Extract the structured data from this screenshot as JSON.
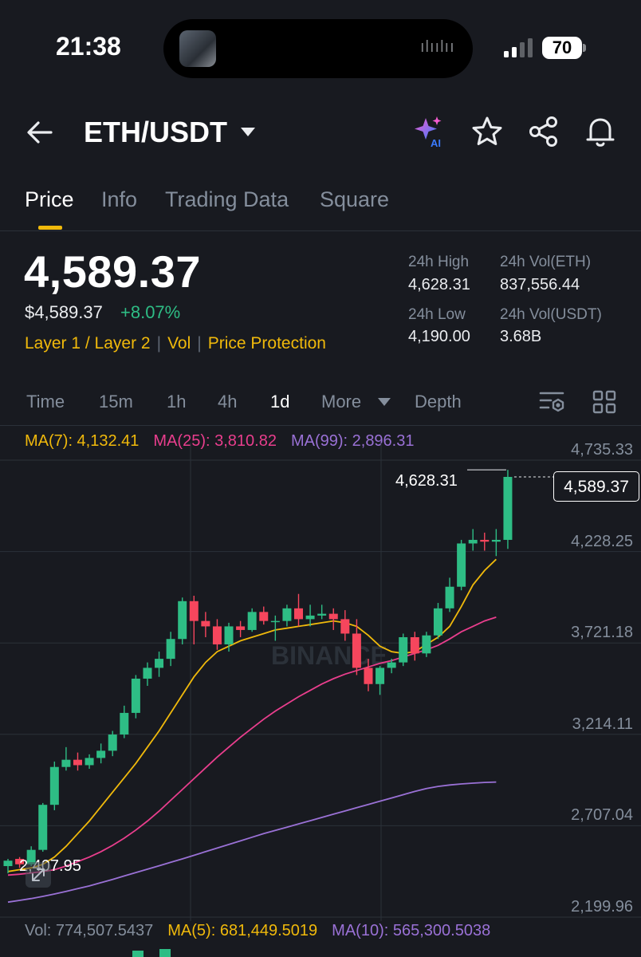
{
  "status_bar": {
    "time": "21:38",
    "battery": "70"
  },
  "header": {
    "pair": "ETH/USDT",
    "ai_badge": "AI"
  },
  "tabs": [
    {
      "label": "Price"
    },
    {
      "label": "Info"
    },
    {
      "label": "Trading Data"
    },
    {
      "label": "Square"
    }
  ],
  "ticker": {
    "last_price": "4,589.37",
    "usd_price": "$4,589.37",
    "change_pct": "+8.07%",
    "tags": [
      "Layer 1 / Layer 2",
      "Vol",
      "Price Protection"
    ],
    "high_label": "24h High",
    "high": "4,628.31",
    "vol_eth_label": "24h Vol(ETH)",
    "vol_eth": "837,556.44",
    "low_label": "24h Low",
    "low": "4,190.00",
    "vol_usdt_label": "24h Vol(USDT)",
    "vol_usdt": "3.68B"
  },
  "intervals": [
    {
      "label": "Time"
    },
    {
      "label": "15m"
    },
    {
      "label": "1h"
    },
    {
      "label": "4h"
    },
    {
      "label": "1d",
      "active": true
    },
    {
      "label": "More"
    },
    {
      "label": "Depth"
    }
  ],
  "ma": {
    "ma7": "MA(7): 4,132.41",
    "ma25": "MA(25): 3,810.82",
    "ma99": "MA(99): 2,896.31"
  },
  "chart_data": {
    "type": "candlestick",
    "y_axis_ticks": [
      "4,735.33",
      "4,228.25",
      "3,721.18",
      "3,214.11",
      "2,707.04",
      "2,199.96"
    ],
    "y_axis_values": [
      4735.33,
      4228.25,
      3721.18,
      3214.11,
      2707.04,
      2199.96
    ],
    "current_price": "4,589.37",
    "high_marker": "4,628.31",
    "low_marker": "2,407.95",
    "watermark": "BINANCE",
    "candles": [
      {
        "o": 2430,
        "h": 2470,
        "l": 2390,
        "c": 2460
      },
      {
        "o": 2470,
        "h": 2480,
        "l": 2420,
        "c": 2440
      },
      {
        "o": 2440,
        "h": 2540,
        "l": 2430,
        "c": 2520
      },
      {
        "o": 2520,
        "h": 2780,
        "l": 2510,
        "c": 2770
      },
      {
        "o": 2770,
        "h": 3010,
        "l": 2740,
        "c": 2980
      },
      {
        "o": 2980,
        "h": 3090,
        "l": 2960,
        "c": 3020
      },
      {
        "o": 3020,
        "h": 3060,
        "l": 2960,
        "c": 2990
      },
      {
        "o": 2990,
        "h": 3050,
        "l": 2970,
        "c": 3030
      },
      {
        "o": 3030,
        "h": 3110,
        "l": 3000,
        "c": 3070
      },
      {
        "o": 3070,
        "h": 3180,
        "l": 3040,
        "c": 3160
      },
      {
        "o": 3160,
        "h": 3320,
        "l": 3140,
        "c": 3280
      },
      {
        "o": 3280,
        "h": 3490,
        "l": 3250,
        "c": 3470
      },
      {
        "o": 3470,
        "h": 3560,
        "l": 3430,
        "c": 3530
      },
      {
        "o": 3530,
        "h": 3620,
        "l": 3480,
        "c": 3580
      },
      {
        "o": 3580,
        "h": 3730,
        "l": 3540,
        "c": 3690
      },
      {
        "o": 3690,
        "h": 3920,
        "l": 3660,
        "c": 3900
      },
      {
        "o": 3900,
        "h": 3930,
        "l": 3660,
        "c": 3790
      },
      {
        "o": 3790,
        "h": 3840,
        "l": 3700,
        "c": 3760
      },
      {
        "o": 3760,
        "h": 3800,
        "l": 3630,
        "c": 3660
      },
      {
        "o": 3660,
        "h": 3780,
        "l": 3620,
        "c": 3760
      },
      {
        "o": 3760,
        "h": 3790,
        "l": 3700,
        "c": 3740
      },
      {
        "o": 3740,
        "h": 3860,
        "l": 3730,
        "c": 3840
      },
      {
        "o": 3840,
        "h": 3870,
        "l": 3770,
        "c": 3790
      },
      {
        "o": 3790,
        "h": 3820,
        "l": 3680,
        "c": 3790
      },
      {
        "o": 3790,
        "h": 3880,
        "l": 3760,
        "c": 3860
      },
      {
        "o": 3860,
        "h": 3940,
        "l": 3760,
        "c": 3800
      },
      {
        "o": 3800,
        "h": 3880,
        "l": 3760,
        "c": 3820
      },
      {
        "o": 3820,
        "h": 3880,
        "l": 3800,
        "c": 3830
      },
      {
        "o": 3830,
        "h": 3860,
        "l": 3740,
        "c": 3800
      },
      {
        "o": 3800,
        "h": 3850,
        "l": 3680,
        "c": 3720
      },
      {
        "o": 3720,
        "h": 3800,
        "l": 3490,
        "c": 3530
      },
      {
        "o": 3530,
        "h": 3580,
        "l": 3400,
        "c": 3440
      },
      {
        "o": 3440,
        "h": 3540,
        "l": 3380,
        "c": 3530
      },
      {
        "o": 3530,
        "h": 3580,
        "l": 3500,
        "c": 3560
      },
      {
        "o": 3560,
        "h": 3720,
        "l": 3540,
        "c": 3700
      },
      {
        "o": 3700,
        "h": 3730,
        "l": 3570,
        "c": 3610
      },
      {
        "o": 3610,
        "h": 3730,
        "l": 3590,
        "c": 3710
      },
      {
        "o": 3710,
        "h": 3890,
        "l": 3690,
        "c": 3860
      },
      {
        "o": 3860,
        "h": 4030,
        "l": 3840,
        "c": 3980
      },
      {
        "o": 3980,
        "h": 4240,
        "l": 3960,
        "c": 4220
      },
      {
        "o": 4220,
        "h": 4300,
        "l": 4180,
        "c": 4240
      },
      {
        "o": 4240,
        "h": 4280,
        "l": 4180,
        "c": 4230
      },
      {
        "o": 4230,
        "h": 4300,
        "l": 4150,
        "c": 4240
      },
      {
        "o": 4240,
        "h": 4628.31,
        "l": 4190,
        "c": 4589.37
      }
    ],
    "ma7_values": [
      2400,
      2410,
      2420,
      2440,
      2480,
      2540,
      2610,
      2680,
      2760,
      2840,
      2920,
      3000,
      3090,
      3180,
      3280,
      3380,
      3480,
      3560,
      3620,
      3650,
      3680,
      3700,
      3720,
      3740,
      3750,
      3760,
      3770,
      3780,
      3790,
      3780,
      3760,
      3710,
      3650,
      3620,
      3610,
      3620,
      3660,
      3700,
      3760,
      3870,
      3990,
      4070,
      4132.41
    ],
    "ma25_values": [
      2380,
      2385,
      2392,
      2400,
      2410,
      2430,
      2455,
      2480,
      2510,
      2545,
      2585,
      2630,
      2680,
      2735,
      2795,
      2855,
      2915,
      2975,
      3035,
      3090,
      3145,
      3195,
      3245,
      3290,
      3330,
      3370,
      3405,
      3440,
      3470,
      3495,
      3515,
      3535,
      3555,
      3570,
      3590,
      3610,
      3630,
      3655,
      3690,
      3730,
      3760,
      3790,
      3810.82
    ],
    "ma99_values": [
      2230,
      2240,
      2250,
      2262,
      2275,
      2290,
      2305,
      2320,
      2338,
      2356,
      2375,
      2394,
      2413,
      2432,
      2451,
      2470,
      2490,
      2510,
      2530,
      2550,
      2570,
      2590,
      2610,
      2628,
      2646,
      2664,
      2682,
      2700,
      2718,
      2736,
      2754,
      2772,
      2790,
      2808,
      2826,
      2844,
      2860,
      2872,
      2880,
      2886,
      2890,
      2894,
      2896.31
    ]
  },
  "volume": {
    "vol": "Vol: 774,507.5437",
    "ma5": "MA(5): 681,449.5019",
    "ma10": "MA(10): 565,300.5038"
  },
  "colors": {
    "background": "#181a20",
    "up": "#2ebd85",
    "down": "#f6465d",
    "accent": "#f0b90b",
    "ma7": "#f0b90b",
    "ma25": "#e93e8d",
    "ma99": "#9a71d6",
    "grid": "#2b3139",
    "muted": "#848e9c"
  },
  "icons": [
    "back-arrow-icon",
    "caret-down-icon",
    "ai-sparkle-icon",
    "star-icon",
    "share-icon",
    "bell-icon",
    "chart-settings-icon",
    "grid-layout-icon",
    "zoom-expand-icon"
  ]
}
